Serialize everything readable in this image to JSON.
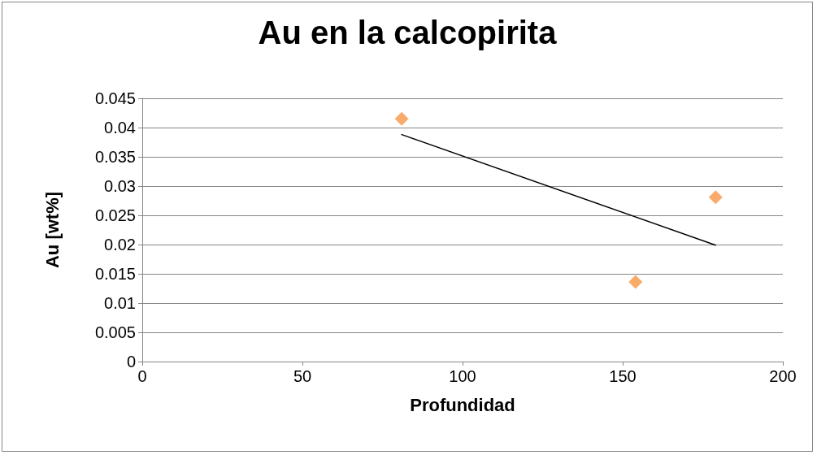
{
  "chart_data": {
    "type": "scatter",
    "title": "Au en la calcopirita",
    "xlabel": "Profundidad",
    "ylabel": "Au [wt%]",
    "series": [
      {
        "color": "#f79646",
        "marker": "diamond",
        "x": [
          81,
          154,
          179
        ],
        "values": [
          0.0415,
          0.0136,
          0.0281
        ]
      },
      {
        "type": "line",
        "color": "#000000",
        "marker": "none",
        "line_style": "solid",
        "x": [
          81,
          179
        ],
        "values": [
          0.0388,
          0.0199
        ]
      }
    ],
    "xlim": [
      0,
      200
    ],
    "xticks": [
      0,
      50,
      100,
      150,
      200
    ],
    "ylim": [
      0,
      0.045
    ],
    "yticks": [
      0,
      0.005,
      0.01,
      0.015,
      0.02,
      0.025,
      0.03,
      0.035,
      0.04,
      0.045
    ],
    "grid": "y"
  }
}
